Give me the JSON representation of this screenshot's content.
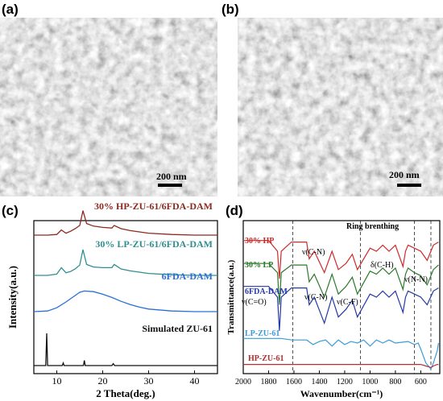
{
  "panels": {
    "a": {
      "label": "(a)",
      "scale_text": "200 nm"
    },
    "b": {
      "label": "(b)",
      "scale_text": "200 nm"
    },
    "c": {
      "label": "(c)"
    },
    "d": {
      "label": "(d)"
    }
  },
  "chart_data": [
    {
      "type": "line",
      "panel": "c",
      "title": "",
      "xlabel": "2 Theta(deg.)",
      "ylabel": "Intensity(a.u.)",
      "xlim": [
        5,
        45
      ],
      "xticks": [
        "10",
        "20",
        "30",
        "40"
      ],
      "yticks": [],
      "grid": false,
      "series": [
        {
          "name": "30% HP-ZU-61/6FDA-DAM",
          "color": "#8b2a1e",
          "x": [
            5,
            8,
            10,
            11,
            12,
            13,
            14,
            15,
            15.7,
            16.5,
            18,
            20,
            22,
            22.5,
            24,
            26,
            30,
            35,
            40,
            45
          ],
          "y": [
            0.3,
            0.3,
            0.31,
            0.38,
            0.33,
            0.36,
            0.4,
            0.45,
            0.68,
            0.48,
            0.44,
            0.42,
            0.41,
            0.45,
            0.4,
            0.37,
            0.33,
            0.31,
            0.3,
            0.3
          ]
        },
        {
          "name": "30% LP-ZU-61/6FDA-DAM",
          "color": "#2f8f8f",
          "x": [
            5,
            8,
            10,
            11,
            12,
            13,
            14,
            15,
            15.7,
            16.5,
            18,
            20,
            22,
            22.5,
            24,
            26,
            30,
            35,
            40,
            45
          ],
          "y": [
            0.3,
            0.3,
            0.32,
            0.42,
            0.34,
            0.36,
            0.4,
            0.46,
            0.7,
            0.47,
            0.43,
            0.42,
            0.42,
            0.47,
            0.4,
            0.37,
            0.33,
            0.31,
            0.3,
            0.3
          ]
        },
        {
          "name": "6FDA-DAM",
          "color": "#2a6fd6",
          "x": [
            5,
            8,
            10,
            12,
            14,
            15,
            16,
            18,
            20,
            22,
            24,
            26,
            28,
            30,
            35,
            40,
            45
          ],
          "y": [
            0.3,
            0.31,
            0.36,
            0.45,
            0.55,
            0.6,
            0.62,
            0.61,
            0.57,
            0.52,
            0.46,
            0.41,
            0.37,
            0.34,
            0.31,
            0.3,
            0.3
          ]
        },
        {
          "name": "Simulated ZU-61",
          "color": "#111111",
          "x": [
            5,
            7.6,
            7.8,
            8.0,
            10,
            11.2,
            11.4,
            11.6,
            15,
            15.8,
            16.0,
            16.2,
            19,
            22,
            22.3,
            22.6,
            24,
            30,
            35,
            40,
            45
          ],
          "y": [
            0.0,
            0.0,
            1.0,
            0.0,
            0.0,
            0.0,
            0.08,
            0.0,
            0.0,
            0.0,
            0.16,
            0.0,
            0.0,
            0.0,
            0.06,
            0.0,
            0.0,
            0.0,
            0.0,
            0.0,
            0.0
          ]
        }
      ]
    },
    {
      "type": "line",
      "panel": "d",
      "title": "",
      "xlabel": "Wavenumber(cm⁻¹)",
      "ylabel": "Transmittance(a.u.)",
      "xlim": [
        2000,
        450
      ],
      "x_reversed": true,
      "xticks": [
        "2000",
        "1800",
        "1600",
        "1400",
        "1200",
        "1000",
        "800",
        "600"
      ],
      "yticks": [],
      "grid": false,
      "vlines_at": [
        1610,
        1075,
        650,
        520
      ],
      "series": [
        {
          "name": "30% HP",
          "color": "#cc2a2a",
          "x": [
            2000,
            1800,
            1730,
            1715,
            1700,
            1620,
            1500,
            1480,
            1440,
            1360,
            1300,
            1250,
            1190,
            1140,
            1100,
            1000,
            950,
            900,
            850,
            800,
            740,
            720,
            700,
            650,
            600,
            550,
            500,
            460
          ],
          "y": [
            0.87,
            0.87,
            0.8,
            0.62,
            0.8,
            0.86,
            0.86,
            0.75,
            0.8,
            0.66,
            0.8,
            0.68,
            0.72,
            0.78,
            0.68,
            0.82,
            0.8,
            0.84,
            0.8,
            0.84,
            0.7,
            0.8,
            0.84,
            0.82,
            0.8,
            0.74,
            0.84,
            0.86
          ]
        },
        {
          "name": "30% LP",
          "color": "#2b7a2b",
          "x": [
            2000,
            1800,
            1730,
            1715,
            1700,
            1620,
            1500,
            1480,
            1440,
            1360,
            1300,
            1250,
            1190,
            1140,
            1100,
            1000,
            950,
            900,
            850,
            800,
            740,
            720,
            700,
            650,
            600,
            550,
            500,
            460
          ],
          "y": [
            0.72,
            0.72,
            0.66,
            0.45,
            0.66,
            0.71,
            0.71,
            0.6,
            0.65,
            0.5,
            0.65,
            0.52,
            0.57,
            0.63,
            0.52,
            0.67,
            0.65,
            0.69,
            0.65,
            0.69,
            0.55,
            0.65,
            0.69,
            0.66,
            0.64,
            0.58,
            0.68,
            0.71
          ]
        },
        {
          "name": "6FDA-DAM",
          "color": "#2338a8",
          "x": [
            2000,
            1800,
            1730,
            1715,
            1700,
            1620,
            1500,
            1480,
            1440,
            1360,
            1300,
            1250,
            1190,
            1140,
            1100,
            1000,
            950,
            900,
            850,
            800,
            740,
            720,
            700,
            650,
            600,
            550,
            500,
            460
          ],
          "y": [
            0.57,
            0.57,
            0.5,
            0.28,
            0.5,
            0.56,
            0.56,
            0.45,
            0.5,
            0.33,
            0.5,
            0.37,
            0.42,
            0.48,
            0.37,
            0.52,
            0.5,
            0.54,
            0.5,
            0.54,
            0.4,
            0.5,
            0.54,
            0.52,
            0.5,
            0.45,
            0.54,
            0.56
          ]
        },
        {
          "name": "LP-ZU-61",
          "color": "#3a9ad9",
          "x": [
            2000,
            1800,
            1700,
            1620,
            1500,
            1450,
            1400,
            1350,
            1300,
            1250,
            1200,
            1150,
            1100,
            1050,
            1000,
            950,
            900,
            850,
            800,
            700,
            650,
            620,
            600,
            560,
            520,
            500,
            470,
            460
          ],
          "y": [
            0.23,
            0.23,
            0.23,
            0.22,
            0.22,
            0.19,
            0.21,
            0.22,
            0.18,
            0.22,
            0.19,
            0.21,
            0.2,
            0.22,
            0.18,
            0.22,
            0.2,
            0.22,
            0.2,
            0.21,
            0.19,
            0.2,
            0.16,
            0.07,
            0.03,
            0.07,
            0.15,
            0.2
          ]
        },
        {
          "name": "HP-ZU-61",
          "color": "#b03030",
          "x": [
            2000,
            1800,
            1700,
            1620,
            1500,
            1400,
            1300,
            1200,
            1100,
            1000,
            900,
            800,
            700,
            650,
            600,
            560,
            520,
            500,
            470,
            460
          ],
          "y": [
            0.06,
            0.06,
            0.06,
            0.06,
            0.06,
            0.06,
            0.06,
            0.06,
            0.06,
            0.06,
            0.06,
            0.06,
            0.06,
            0.06,
            0.06,
            0.05,
            0.04,
            0.05,
            0.06,
            0.06
          ]
        }
      ],
      "annotations": [
        {
          "text": "Ring brenthing"
        },
        {
          "text": "ν(C-N)"
        },
        {
          "text": "δ(C-H)"
        },
        {
          "text": "ν(N-N)"
        },
        {
          "text": "ν(C=O)"
        },
        {
          "text": "ν(C-N)"
        },
        {
          "text": "ν(C-F)"
        }
      ]
    }
  ]
}
